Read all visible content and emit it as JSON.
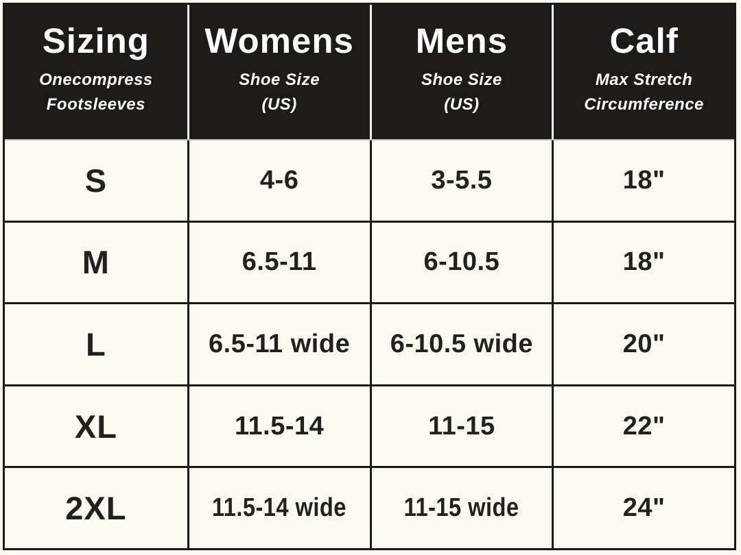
{
  "chart_data": {
    "type": "table",
    "title": "Sizing — Onecompress Footsleeves size chart",
    "header": {
      "cells": [
        {
          "title": "Sizing",
          "subtitle": "Onecompress\nFootsleeves"
        },
        {
          "title": "Womens",
          "subtitle": "Shoe Size\n(US)"
        },
        {
          "title": "Mens",
          "subtitle": "Shoe Size\n(US)"
        },
        {
          "title": "Calf",
          "subtitle": "Max Stretch\nCircumference"
        }
      ]
    },
    "rows": [
      {
        "cells": [
          "S",
          "4-6",
          "3-5.5",
          "18\""
        ]
      },
      {
        "cells": [
          "M",
          "6.5-11",
          "6-10.5",
          "18\""
        ]
      },
      {
        "cells": [
          "L",
          "6.5-11 wide",
          "6-10.5 wide",
          "20\""
        ]
      },
      {
        "cells": [
          "XL",
          "11.5-14",
          "11-15",
          "22\""
        ]
      },
      {
        "cells": [
          "2XL",
          "11.5-14 wide",
          "11-15 wide",
          "24\""
        ]
      }
    ]
  },
  "colors": {
    "header_bg": "#1d1b1a",
    "body_bg": "#fbfaf2",
    "grid_line": "#1b1918",
    "header_separator": "#f3f2ea",
    "text_light": "#ffffff",
    "text_dark": "#23211f"
  }
}
